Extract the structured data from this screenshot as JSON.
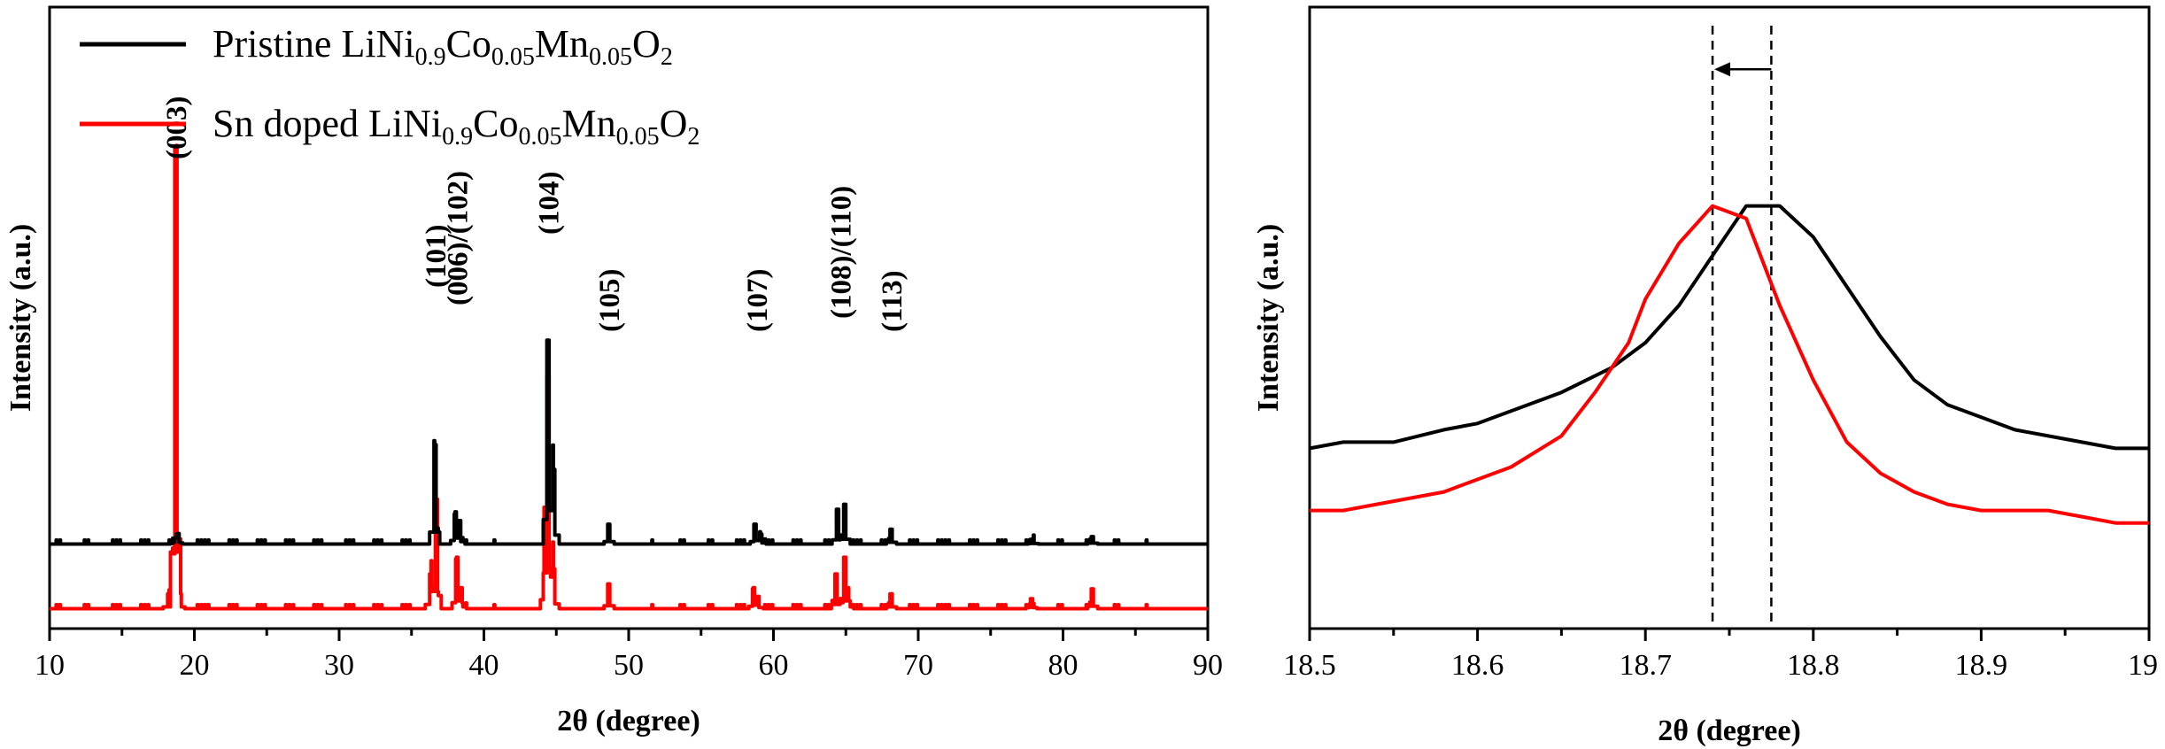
{
  "chart_data": [
    {
      "type": "line",
      "panel": "left",
      "title": "",
      "xlabel": "2θ (degree)",
      "ylabel": "Intensity (a.u.)",
      "xlim": [
        10,
        90
      ],
      "xticks": [
        10,
        20,
        30,
        40,
        50,
        60,
        70,
        80,
        90
      ],
      "ylim": [
        0,
        1.25
      ],
      "legend_position": "top-left",
      "legend": [
        {
          "name": "Pristine LiNi",
          "sub1": "0.9",
          "mid1": "Co",
          "sub2": "0.05",
          "mid2": "Mn",
          "sub3": "0.05",
          "mid3": "O",
          "sub4": "2",
          "color": "#000000"
        },
        {
          "name": "Sn doped LiNi",
          "sub1": "0.9",
          "mid1": "Co",
          "sub2": "0.05",
          "mid2": "Mn",
          "sub3": "0.05",
          "mid3": "O",
          "sub4": "2",
          "color": "#ff0000"
        }
      ],
      "series": [
        {
          "name": "Pristine LiNi0.9Co0.05Mn0.05O2",
          "color": "#000000",
          "baseline": 0.17,
          "peaks": [
            {
              "x": 18.7,
              "h": 0.01
            },
            {
              "x": 18.85,
              "h": 0.02
            },
            {
              "x": 36.6,
              "h": 0.2
            },
            {
              "x": 38.0,
              "h": 0.06
            },
            {
              "x": 38.3,
              "h": 0.04
            },
            {
              "x": 44.4,
              "h": 0.41
            },
            {
              "x": 44.8,
              "h": 0.15
            },
            {
              "x": 48.6,
              "h": 0.04
            },
            {
              "x": 58.7,
              "h": 0.04
            },
            {
              "x": 59.1,
              "h": 0.02
            },
            {
              "x": 64.4,
              "h": 0.07
            },
            {
              "x": 64.9,
              "h": 0.08
            },
            {
              "x": 68.1,
              "h": 0.03
            },
            {
              "x": 77.9,
              "h": 0.01
            },
            {
              "x": 82.0,
              "h": 0.015
            }
          ]
        },
        {
          "name": "Sn doped LiNi0.9Co0.05Mn0.05O2",
          "color": "#ff0000",
          "baseline": 0.04,
          "peaks": [
            {
              "x": 18.2,
              "h": 0.03
            },
            {
              "x": 18.7,
              "h": 0.92
            },
            {
              "x": 19.0,
              "h": 0.03
            },
            {
              "x": 36.3,
              "h": 0.07
            },
            {
              "x": 36.7,
              "h": 0.22
            },
            {
              "x": 38.1,
              "h": 0.1
            },
            {
              "x": 38.4,
              "h": 0.03
            },
            {
              "x": 44.2,
              "h": 0.15
            },
            {
              "x": 44.4,
              "h": 0.45
            },
            {
              "x": 44.8,
              "h": 0.08
            },
            {
              "x": 48.6,
              "h": 0.05
            },
            {
              "x": 58.6,
              "h": 0.04
            },
            {
              "x": 58.9,
              "h": 0.02
            },
            {
              "x": 64.3,
              "h": 0.07
            },
            {
              "x": 64.9,
              "h": 0.1
            },
            {
              "x": 65.1,
              "h": 0.03
            },
            {
              "x": 68.1,
              "h": 0.03
            },
            {
              "x": 77.8,
              "h": 0.02
            },
            {
              "x": 82.0,
              "h": 0.04
            }
          ]
        }
      ],
      "annotations": [
        {
          "text": "(003)",
          "x": 18.7
        },
        {
          "text": "(101)",
          "x": 36.6
        },
        {
          "text": "(006)/(102)",
          "x": 38.1
        },
        {
          "text": "(104)",
          "x": 44.4
        },
        {
          "text": "(105)",
          "x": 48.6
        },
        {
          "text": "(107)",
          "x": 58.8
        },
        {
          "text": "(108)/(110)",
          "x": 64.6
        },
        {
          "text": "(113)",
          "x": 68.1
        }
      ]
    },
    {
      "type": "line",
      "panel": "right",
      "title": "",
      "xlabel": "2θ (degree)",
      "ylabel": "Intensity (a.u.)",
      "xlim": [
        18.5,
        19.0
      ],
      "xticks": [
        "18.5",
        "18.6",
        "18.7",
        "18.8",
        "18.9",
        "19"
      ],
      "ylim": [
        0,
        1
      ],
      "series": [
        {
          "name": "Pristine LiNi0.9Co0.05Mn0.05O2",
          "color": "#000000",
          "x": [
            18.5,
            18.52,
            18.55,
            18.58,
            18.6,
            18.63,
            18.65,
            18.68,
            18.7,
            18.72,
            18.74,
            18.76,
            18.78,
            18.8,
            18.82,
            18.84,
            18.86,
            18.88,
            18.9,
            18.92,
            18.94,
            18.96,
            18.98,
            19.0
          ],
          "y": [
            0.29,
            0.3,
            0.3,
            0.32,
            0.33,
            0.36,
            0.38,
            0.42,
            0.46,
            0.52,
            0.6,
            0.68,
            0.68,
            0.63,
            0.55,
            0.47,
            0.4,
            0.36,
            0.34,
            0.32,
            0.31,
            0.3,
            0.29,
            0.29
          ]
        },
        {
          "name": "Sn doped LiNi0.9Co0.05Mn0.05O2",
          "color": "#ff0000",
          "x": [
            18.5,
            18.52,
            18.54,
            18.56,
            18.58,
            18.6,
            18.62,
            18.65,
            18.67,
            18.69,
            18.7,
            18.72,
            18.74,
            18.76,
            18.78,
            18.8,
            18.82,
            18.84,
            18.86,
            18.88,
            18.9,
            18.92,
            18.94,
            18.96,
            18.98,
            19.0
          ],
          "y": [
            0.19,
            0.19,
            0.2,
            0.21,
            0.22,
            0.24,
            0.26,
            0.31,
            0.38,
            0.46,
            0.53,
            0.62,
            0.68,
            0.66,
            0.52,
            0.4,
            0.3,
            0.25,
            0.22,
            0.2,
            0.19,
            0.19,
            0.19,
            0.18,
            0.17,
            0.17
          ]
        }
      ],
      "reference_lines": [
        18.74,
        18.775
      ],
      "arrow": {
        "from": 18.775,
        "to": 18.74,
        "y": 0.9
      }
    }
  ]
}
